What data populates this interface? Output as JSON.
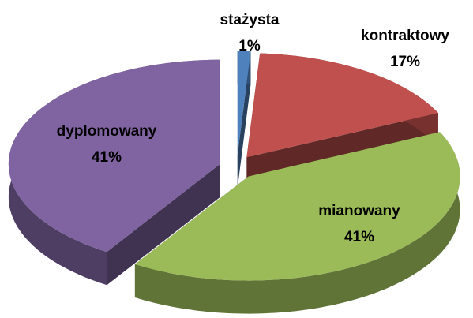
{
  "chart_data": {
    "type": "pie",
    "categories": [
      "stażysta",
      "kontraktowy",
      "mianowany",
      "dyplomowany"
    ],
    "values": [
      1,
      17,
      41,
      41
    ],
    "value_labels": [
      "1%",
      "17%",
      "41%",
      "41%"
    ],
    "colors": [
      "#4f81bd",
      "#c0504d",
      "#9bbb59",
      "#8064a2"
    ]
  }
}
